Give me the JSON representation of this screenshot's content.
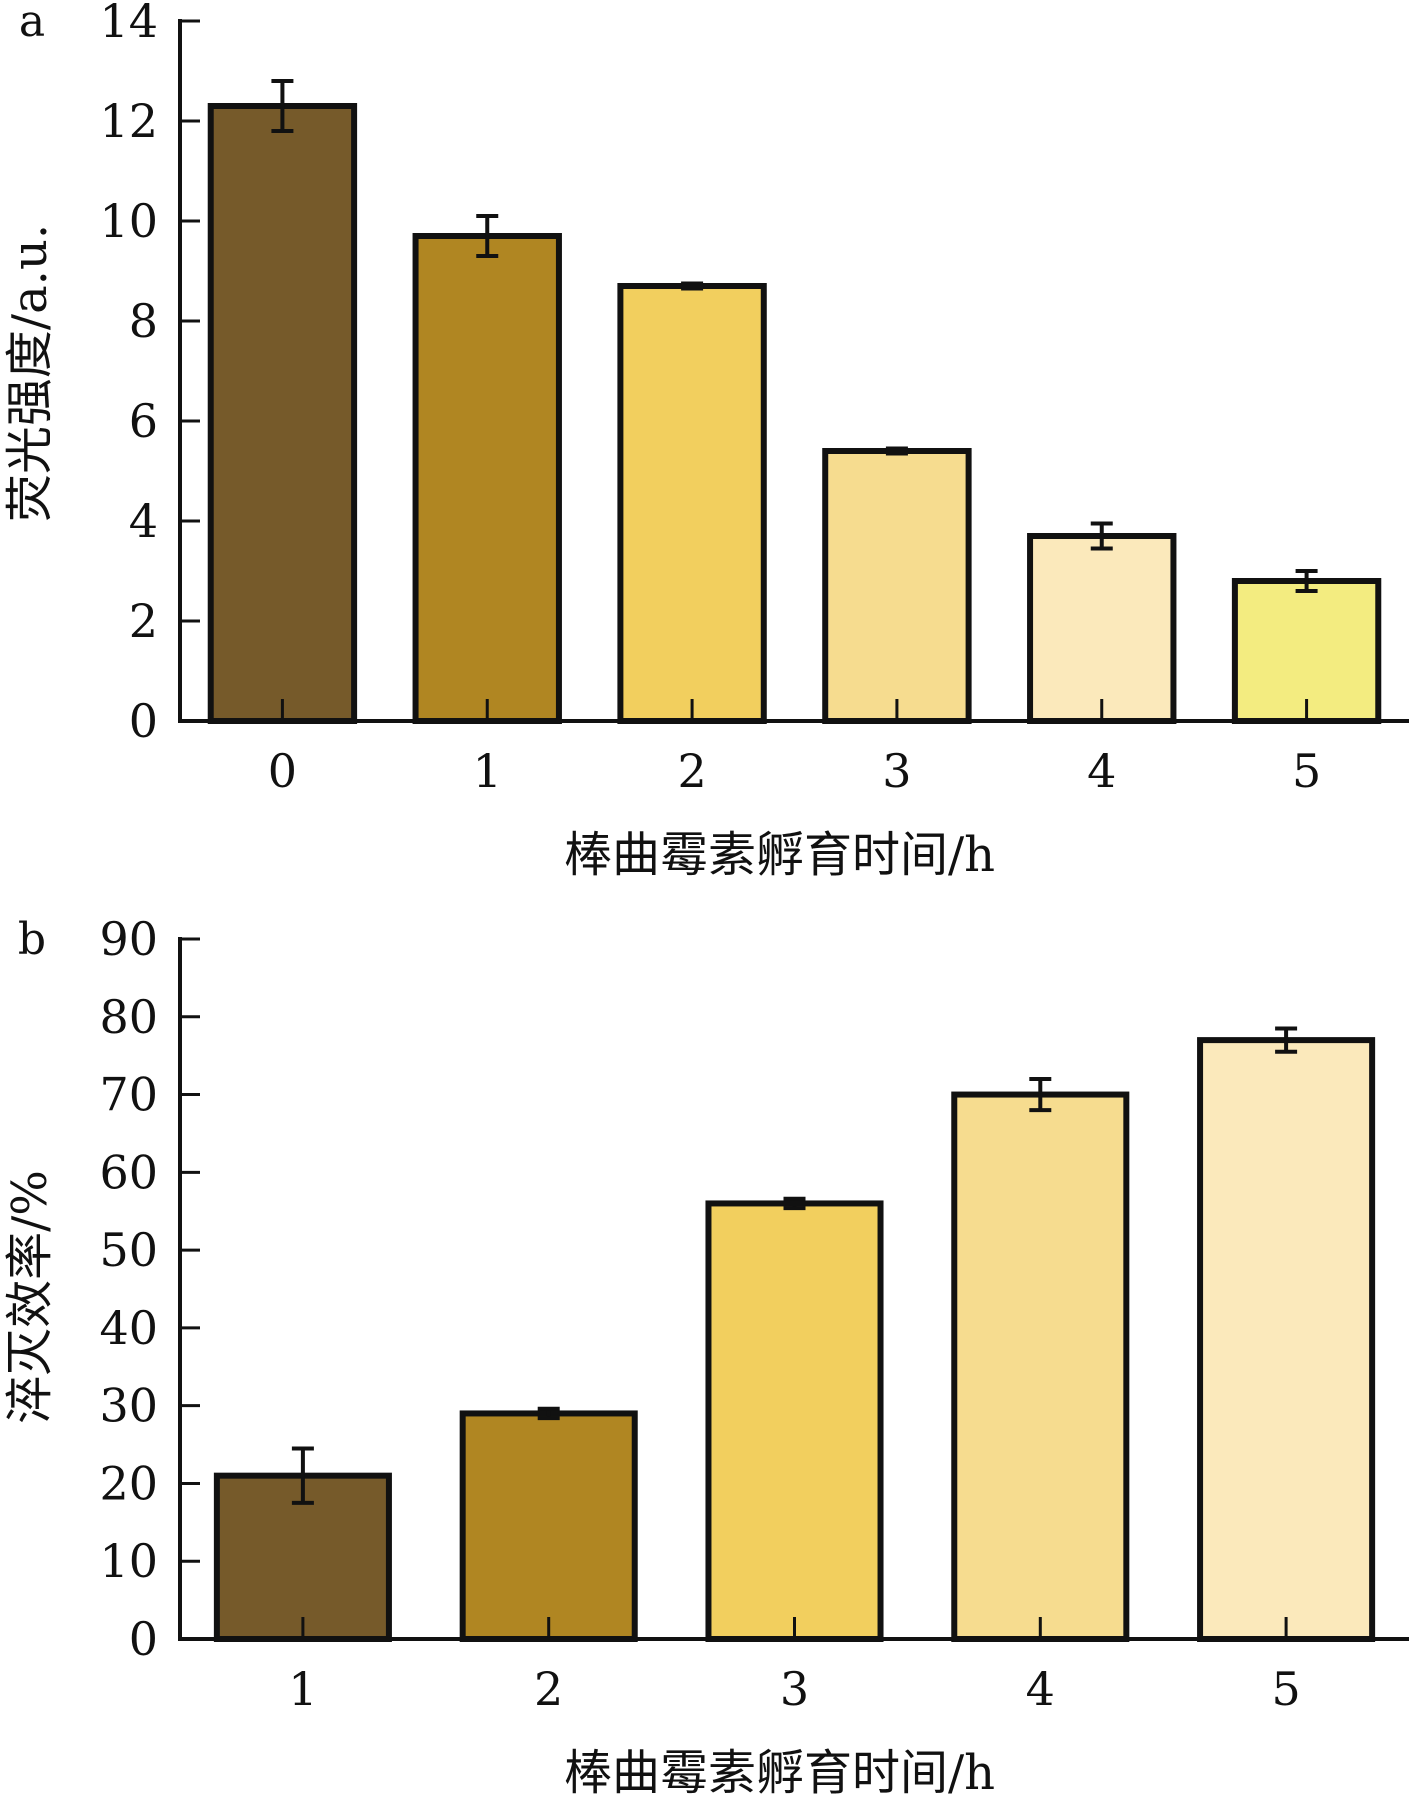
{
  "chart_data": [
    {
      "panel": "a",
      "type": "bar",
      "title": "",
      "xlabel": "棒曲霉素孵育时间/h",
      "ylabel": "荧光强度/a.u.",
      "categories": [
        "0",
        "1",
        "2",
        "3",
        "4",
        "5"
      ],
      "values": [
        12.3,
        9.7,
        8.7,
        5.4,
        3.7,
        2.8
      ],
      "errors": [
        0.5,
        0.4,
        0.05,
        0.05,
        0.25,
        0.2
      ],
      "colors": [
        "#765a2a",
        "#b08622",
        "#f2cf5e",
        "#f6dc8f",
        "#fbe9bb",
        "#f3ec80"
      ],
      "ylim": [
        0,
        14
      ],
      "yticks": [
        "0",
        "2",
        "4",
        "6",
        "8",
        "10",
        "12",
        "14"
      ],
      "grid": false
    },
    {
      "panel": "b",
      "type": "bar",
      "title": "",
      "xlabel": "棒曲霉素孵育时间/h",
      "ylabel": "淬灭效率/%",
      "categories": [
        "1",
        "2",
        "3",
        "4",
        "5"
      ],
      "values": [
        21,
        29,
        56,
        70,
        77
      ],
      "errors": [
        3.5,
        0.6,
        0.6,
        2,
        1.5
      ],
      "colors": [
        "#765a2a",
        "#b08622",
        "#f2cf5e",
        "#f6dc8f",
        "#fbe9bb"
      ],
      "ylim": [
        0,
        90
      ],
      "yticks": [
        "0",
        "10",
        "20",
        "30",
        "40",
        "50",
        "60",
        "70",
        "80",
        "90"
      ],
      "grid": false
    }
  ]
}
